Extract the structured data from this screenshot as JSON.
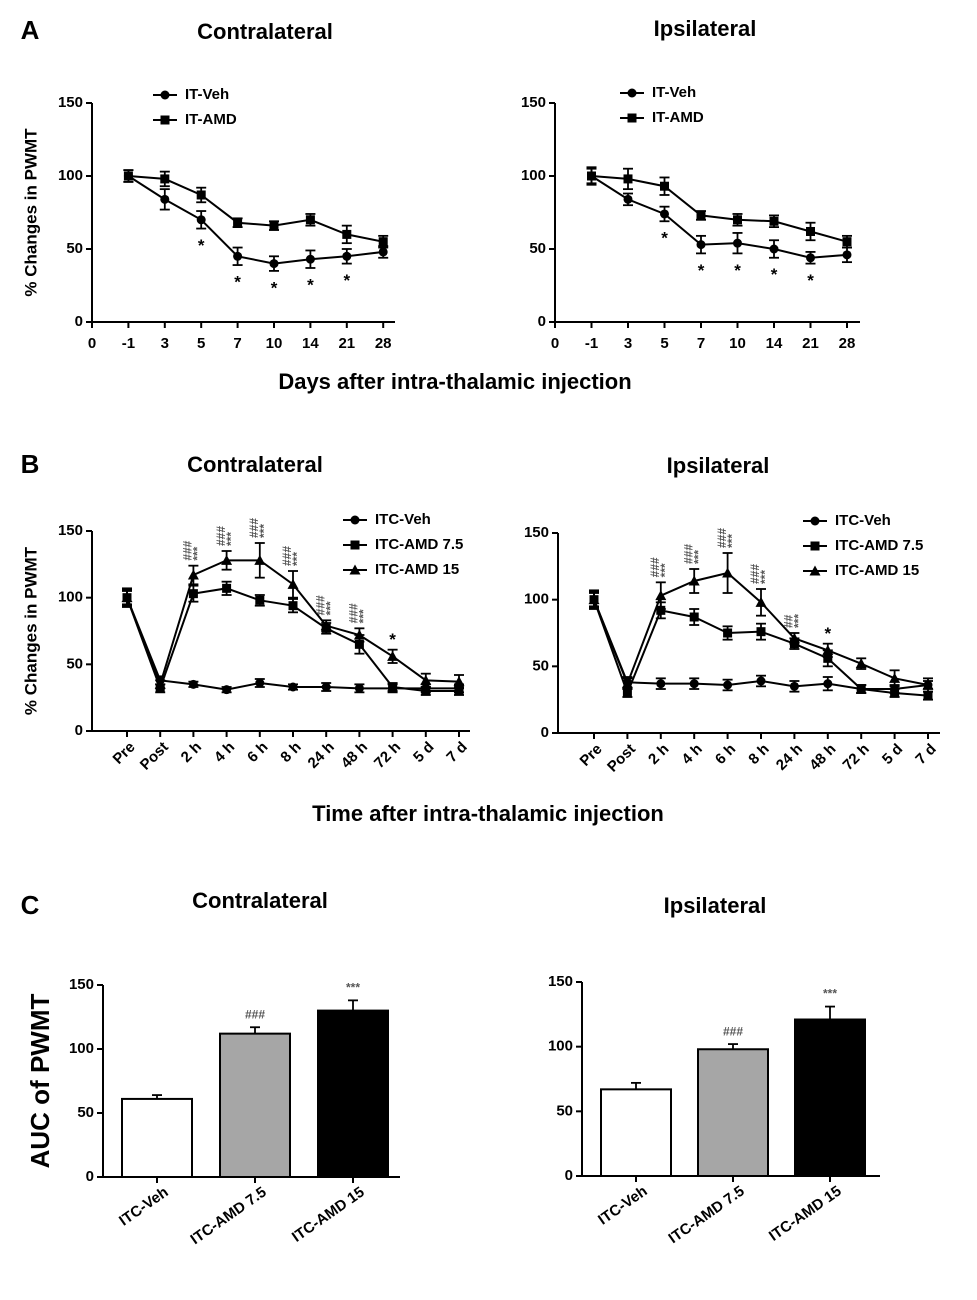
{
  "figure": {
    "panel_labels": [
      "A",
      "B",
      "C"
    ],
    "x_labels": [
      "Days after intra-thalamic injection",
      "Time after intra-thalamic injection"
    ]
  },
  "chart_data": [
    {
      "type": "line",
      "title": "Contralateral",
      "y_label": "% Changes in PWMT",
      "categories": [
        "0",
        "-1",
        "3",
        "5",
        "7",
        "10",
        "14",
        "21",
        "28"
      ],
      "ylim": [
        0,
        150
      ],
      "yticks": [
        0,
        50,
        100,
        150
      ],
      "series": [
        {
          "name": "IT-Veh",
          "marker": "circle",
          "color": "#000000",
          "values": [
            null,
            100,
            84,
            70,
            45,
            40,
            43,
            45,
            48
          ],
          "errors": [
            null,
            4,
            7,
            6,
            6,
            5,
            6,
            5,
            4
          ]
        },
        {
          "name": "IT-AMD",
          "marker": "square",
          "color": "#000000",
          "values": [
            null,
            100,
            98,
            87,
            68,
            66,
            70,
            60,
            55
          ],
          "errors": [
            null,
            4,
            5,
            5,
            3,
            3,
            4,
            6,
            4
          ]
        }
      ],
      "annotations": [
        null,
        null,
        null,
        [
          "*"
        ],
        [
          "*"
        ],
        [
          "*"
        ],
        [
          "*"
        ],
        [
          "*"
        ],
        null
      ]
    },
    {
      "type": "line",
      "title": "Ipsilateral",
      "categories": [
        "0",
        "-1",
        "3",
        "5",
        "7",
        "10",
        "14",
        "21",
        "28"
      ],
      "ylim": [
        0,
        150
      ],
      "yticks": [
        0,
        50,
        100,
        150
      ],
      "series": [
        {
          "name": "IT-Veh",
          "marker": "circle",
          "color": "#000000",
          "values": [
            null,
            100,
            84,
            74,
            53,
            54,
            50,
            44,
            46
          ],
          "errors": [
            null,
            5,
            4,
            5,
            6,
            7,
            6,
            4,
            5
          ]
        },
        {
          "name": "IT-AMD",
          "marker": "square",
          "color": "#000000",
          "values": [
            null,
            100,
            98,
            93,
            73,
            70,
            69,
            62,
            55
          ],
          "errors": [
            null,
            6,
            7,
            6,
            3,
            4,
            4,
            6,
            4
          ]
        }
      ],
      "annotations": [
        null,
        null,
        null,
        [
          "*"
        ],
        [
          "*"
        ],
        [
          "*"
        ],
        [
          "*"
        ],
        [
          "*"
        ],
        null
      ]
    },
    {
      "type": "line",
      "title": "Contralateral",
      "y_label": "% Changes in PWMT",
      "categories": [
        "Pre",
        "Post",
        "2 h",
        "4 h",
        "6 h",
        "8 h",
        "24 h",
        "48 h",
        "72 h",
        "5 d",
        "7 d"
      ],
      "ylim": [
        0,
        150
      ],
      "yticks": [
        0,
        50,
        100,
        150
      ],
      "series": [
        {
          "name": "ITC-Veh",
          "marker": "circle",
          "color": "#000000",
          "values": [
            100,
            38,
            35,
            31,
            36,
            33,
            33,
            32,
            32,
            32,
            32
          ],
          "errors": [
            7,
            3,
            2,
            2,
            3,
            2,
            3,
            3,
            3,
            3,
            3
          ]
        },
        {
          "name": "ITC-AMD 7.5",
          "marker": "square",
          "color": "#000000",
          "values": [
            100,
            32,
            103,
            107,
            98,
            94,
            77,
            65,
            33,
            30,
            30
          ],
          "errors": [
            6,
            3,
            6,
            5,
            4,
            5,
            4,
            7,
            3,
            3,
            3
          ]
        },
        {
          "name": "ITC-AMD 15",
          "marker": "triangle",
          "color": "#000000",
          "values": [
            100,
            35,
            117,
            128,
            128,
            110,
            79,
            72,
            56,
            38,
            37
          ],
          "errors": [
            5,
            3,
            7,
            7,
            13,
            10,
            4,
            5,
            5,
            5,
            5
          ]
        }
      ],
      "annotations": [
        null,
        null,
        [
          "###",
          "***"
        ],
        [
          "###",
          "***"
        ],
        [
          "###",
          "***"
        ],
        [
          "###",
          "***"
        ],
        [
          "###",
          "***"
        ],
        [
          "###",
          "***"
        ],
        [
          "*"
        ],
        null,
        null
      ]
    },
    {
      "type": "line",
      "title": "Ipsilateral",
      "categories": [
        "Pre",
        "Post",
        "2 h",
        "4 h",
        "6 h",
        "8 h",
        "24 h",
        "48 h",
        "72 h",
        "5 d",
        "7 d"
      ],
      "ylim": [
        0,
        150
      ],
      "yticks": [
        0,
        50,
        100,
        150
      ],
      "series": [
        {
          "name": "ITC-Veh",
          "marker": "circle",
          "color": "#000000",
          "values": [
            100,
            38,
            37,
            37,
            36,
            39,
            35,
            37,
            33,
            33,
            36
          ],
          "errors": [
            6,
            4,
            4,
            4,
            4,
            4,
            4,
            5,
            3,
            3,
            3
          ]
        },
        {
          "name": "ITC-AMD 7.5",
          "marker": "square",
          "color": "#000000",
          "values": [
            100,
            30,
            92,
            87,
            75,
            76,
            67,
            56,
            33,
            30,
            28
          ],
          "errors": [
            7,
            3,
            6,
            6,
            5,
            6,
            4,
            6,
            3,
            3,
            3
          ]
        },
        {
          "name": "ITC-AMD 15",
          "marker": "triangle",
          "color": "#000000",
          "values": [
            100,
            37,
            103,
            114,
            120,
            98,
            71,
            62,
            52,
            41,
            36
          ],
          "errors": [
            5,
            4,
            10,
            9,
            15,
            10,
            4,
            5,
            4,
            6,
            5
          ]
        }
      ],
      "annotations": [
        null,
        null,
        [
          "###",
          "***"
        ],
        [
          "###",
          "***"
        ],
        [
          "###",
          "***"
        ],
        [
          "###",
          "***"
        ],
        [
          "##",
          "***"
        ],
        [
          "*"
        ],
        null,
        null,
        null
      ]
    },
    {
      "type": "bar",
      "title": "Contralateral",
      "y_label": "AUC of PWMT",
      "categories": [
        "ITC-Veh",
        "ITC-AMD 7.5",
        "ITC-AMD 15"
      ],
      "values": [
        61,
        112,
        130
      ],
      "errors": [
        3,
        5,
        8
      ],
      "colors": [
        "#ffffff",
        "#a6a6a6",
        "#000000"
      ],
      "ylim": [
        0,
        150
      ],
      "yticks": [
        0,
        50,
        100,
        150
      ],
      "annotations": [
        null,
        "###",
        "***"
      ]
    },
    {
      "type": "bar",
      "title": "Ipsilateral",
      "categories": [
        "ITC-Veh",
        "ITC-AMD 7.5",
        "ITC-AMD 15"
      ],
      "values": [
        67,
        98,
        121
      ],
      "errors": [
        5,
        4,
        10
      ],
      "colors": [
        "#ffffff",
        "#a6a6a6",
        "#000000"
      ],
      "ylim": [
        0,
        150
      ],
      "yticks": [
        0,
        50,
        100,
        150
      ],
      "annotations": [
        null,
        "###",
        "***"
      ]
    }
  ]
}
